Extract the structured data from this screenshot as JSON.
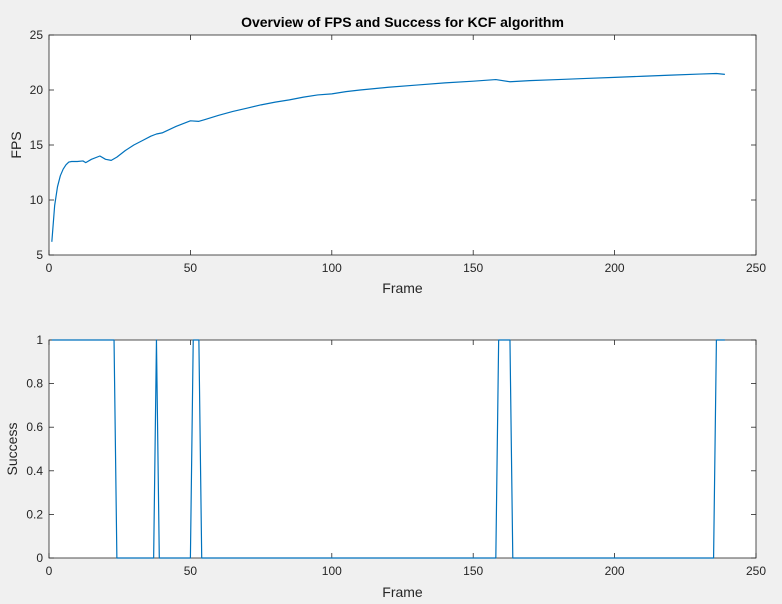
{
  "chart_data": [
    {
      "type": "line",
      "title": "Overview of FPS and Success for KCF algorithm",
      "xlabel": "Frame",
      "ylabel": "FPS",
      "xlim": [
        0,
        250
      ],
      "ylim": [
        5,
        25
      ],
      "xticks": [
        0,
        50,
        100,
        150,
        200,
        250
      ],
      "xtick_labels": [
        "0",
        "50",
        "100",
        "150",
        "200",
        "250"
      ],
      "yticks": [
        5,
        10,
        15,
        20,
        25
      ],
      "ytick_labels": [
        "5",
        "10",
        "15",
        "20",
        "25"
      ],
      "grid": false,
      "color": "#0072bd",
      "series": [
        {
          "x": [
            1,
            2,
            3,
            4,
            5,
            6,
            7,
            8,
            10,
            12,
            13,
            15,
            18,
            20,
            22,
            24,
            27,
            30,
            33,
            36,
            38,
            40,
            45,
            50,
            53,
            55,
            60,
            65,
            70,
            75,
            80,
            85,
            90,
            95,
            100,
            105,
            110,
            120,
            130,
            140,
            150,
            158,
            163,
            170,
            180,
            190,
            200,
            210,
            220,
            230,
            236,
            239
          ],
          "y": [
            6.2,
            9.5,
            11.2,
            12.2,
            12.8,
            13.2,
            13.45,
            13.5,
            13.5,
            13.55,
            13.4,
            13.7,
            14.0,
            13.7,
            13.6,
            13.9,
            14.5,
            15.0,
            15.4,
            15.8,
            16.0,
            16.1,
            16.7,
            17.2,
            17.15,
            17.3,
            17.7,
            18.05,
            18.35,
            18.65,
            18.9,
            19.1,
            19.35,
            19.55,
            19.65,
            19.85,
            20.0,
            20.25,
            20.45,
            20.65,
            20.8,
            20.95,
            20.75,
            20.85,
            20.95,
            21.05,
            21.15,
            21.25,
            21.35,
            21.45,
            21.5,
            21.42
          ]
        }
      ]
    },
    {
      "type": "line",
      "title": "",
      "xlabel": "Frame",
      "ylabel": "Success",
      "xlim": [
        0,
        250
      ],
      "ylim": [
        0,
        1
      ],
      "xticks": [
        0,
        50,
        100,
        150,
        200,
        250
      ],
      "xtick_labels": [
        "0",
        "50",
        "100",
        "150",
        "200",
        "250"
      ],
      "yticks": [
        0,
        0.2,
        0.4,
        0.6,
        0.8,
        1
      ],
      "ytick_labels": [
        "0",
        "0.2",
        "0.4",
        "0.6",
        "0.8",
        "1"
      ],
      "grid": false,
      "color": "#0072bd",
      "series": [
        {
          "x": [
            1,
            23,
            24,
            37,
            38,
            39,
            50,
            51,
            53,
            54,
            158,
            159,
            163,
            164,
            235,
            236,
            239
          ],
          "y": [
            1,
            1,
            0,
            0,
            1,
            0,
            0,
            1,
            1,
            0,
            0,
            1,
            1,
            0,
            0,
            1,
            1
          ]
        }
      ]
    }
  ]
}
